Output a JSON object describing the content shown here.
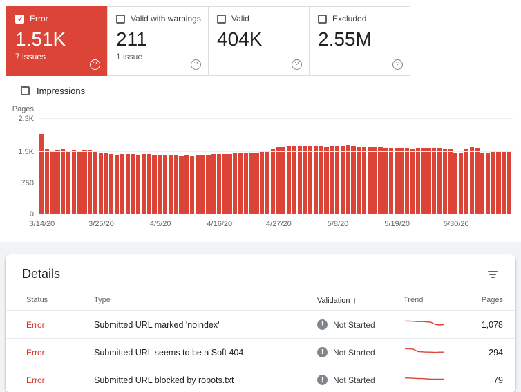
{
  "colors": {
    "red": "#db4437",
    "text_dark": "#202124",
    "text_gray": "#5f6368",
    "border": "#dadce0"
  },
  "icons": {
    "help": "?",
    "sort_asc": "↑",
    "exclaim": "!",
    "check": "✓"
  },
  "status_cards": [
    {
      "label": "Error",
      "value": "1.51K",
      "sub": "7 issues",
      "checked": true,
      "selected": true
    },
    {
      "label": "Valid with warnings",
      "value": "211",
      "sub": "1 issue",
      "checked": false,
      "selected": false
    },
    {
      "label": "Valid",
      "value": "404K",
      "sub": "",
      "checked": false,
      "selected": false
    },
    {
      "label": "Excluded",
      "value": "2.55M",
      "sub": "",
      "checked": false,
      "selected": false
    }
  ],
  "impressions": {
    "label": "Impressions",
    "checked": false
  },
  "chart_data": {
    "type": "bar",
    "title": "",
    "ylabel": "Pages",
    "bar_color": "#db4437",
    "ylim": [
      0,
      2300
    ],
    "yticks": [
      {
        "label": "2.3K",
        "value": 2300
      },
      {
        "label": "1.5K",
        "value": 1500
      },
      {
        "label": "750",
        "value": 750
      },
      {
        "label": "0",
        "value": 0
      }
    ],
    "xtick_labels": [
      "3/14/20",
      "3/25/20",
      "4/5/20",
      "4/16/20",
      "4/27/20",
      "5/8/20",
      "5/19/20",
      "5/30/20"
    ],
    "xtick_indices": [
      0,
      11,
      22,
      33,
      44,
      55,
      66,
      77
    ],
    "values": [
      1930,
      1560,
      1540,
      1550,
      1560,
      1540,
      1550,
      1530,
      1545,
      1550,
      1540,
      1480,
      1460,
      1450,
      1440,
      1455,
      1445,
      1450,
      1440,
      1445,
      1450,
      1440,
      1430,
      1435,
      1440,
      1430,
      1420,
      1430,
      1425,
      1430,
      1435,
      1440,
      1445,
      1450,
      1455,
      1450,
      1460,
      1465,
      1470,
      1480,
      1490,
      1495,
      1500,
      1560,
      1620,
      1640,
      1650,
      1645,
      1650,
      1655,
      1650,
      1645,
      1650,
      1640,
      1650,
      1655,
      1650,
      1660,
      1650,
      1640,
      1630,
      1620,
      1615,
      1610,
      1600,
      1605,
      1600,
      1595,
      1600,
      1590,
      1600,
      1595,
      1600,
      1605,
      1600,
      1590,
      1580,
      1490,
      1470,
      1560,
      1620,
      1600,
      1480,
      1460,
      1500,
      1520,
      1530,
      1540
    ]
  },
  "details": {
    "title": "Details",
    "columns": [
      "Status",
      "Type",
      "Validation",
      "Trend",
      "Pages"
    ],
    "rows": [
      {
        "status": "Error",
        "type": "Submitted URL marked 'noindex'",
        "validation": "Not Started",
        "pages": "1,078",
        "trend": [
          12,
          12,
          11.5,
          11,
          11,
          10.5,
          10,
          6,
          5,
          5.5
        ]
      },
      {
        "status": "Error",
        "type": "Submitted URL seems to be a Soft 404",
        "validation": "Not Started",
        "pages": "294",
        "trend": [
          12,
          12,
          11,
          7,
          6.5,
          6,
          6,
          5.5,
          6,
          6
        ]
      },
      {
        "status": "Error",
        "type": "Submitted URL blocked by robots.txt",
        "validation": "Not Started",
        "pages": "79",
        "trend": [
          9,
          9,
          8.5,
          8,
          8,
          7.5,
          7,
          7,
          7,
          7
        ]
      }
    ]
  }
}
